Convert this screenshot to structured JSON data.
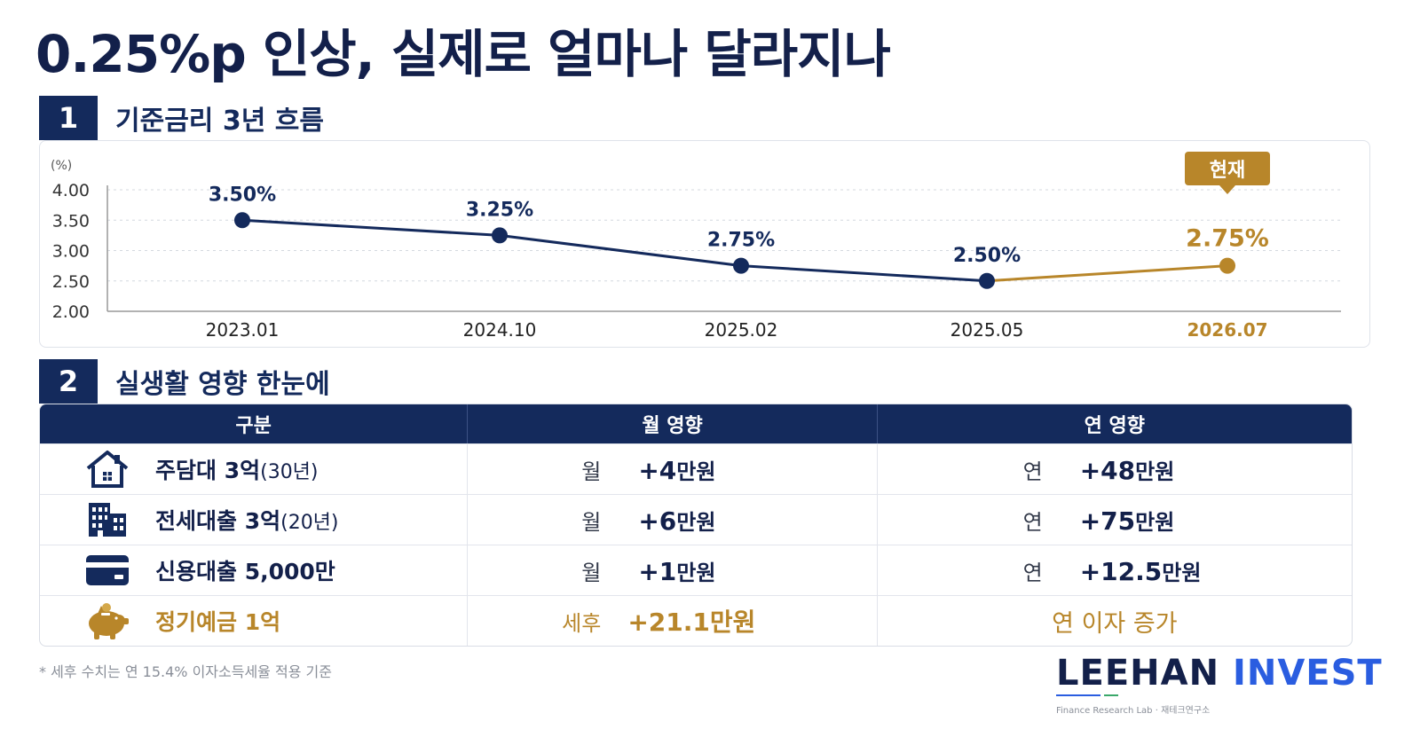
{
  "title": "0.25%p 인상, 실제로 얼마나 달라지나",
  "section1": {
    "number": "1",
    "title": "기준금리 3년 흐름"
  },
  "section2": {
    "number": "2",
    "title": "실생활 영향 한눈에"
  },
  "chart_data": {
    "type": "line",
    "ylabel": "(%)",
    "ylim": [
      2.0,
      4.0
    ],
    "yticks": [
      "4.00",
      "3.50",
      "3.00",
      "2.50",
      "2.00"
    ],
    "categories": [
      "2023.01",
      "2024.10",
      "2025.02",
      "2025.05",
      "2026.07"
    ],
    "values": [
      3.5,
      3.25,
      2.75,
      2.5,
      2.75
    ],
    "data_labels": [
      "3.50%",
      "3.25%",
      "2.75%",
      "2.50%",
      "2.75%"
    ],
    "current_badge": "현재",
    "highlight_index": 4,
    "grid": true,
    "colors": {
      "line": "#142a5c",
      "highlight": "#b8862a"
    }
  },
  "table": {
    "headers": [
      "구분",
      "월 영향",
      "연 영향"
    ],
    "rows": [
      {
        "icon": "house-icon",
        "label_main": "주담대 3억",
        "label_sub": "(30년)",
        "monthly_prefix": "월",
        "monthly_value": "+4",
        "monthly_unit": "만원",
        "yearly_prefix": "연",
        "yearly_value": "+48",
        "yearly_unit": "만원"
      },
      {
        "icon": "building-icon",
        "label_main": "전세대출 3억",
        "label_sub": "(20년)",
        "monthly_prefix": "월",
        "monthly_value": "+6",
        "monthly_unit": "만원",
        "yearly_prefix": "연",
        "yearly_value": "+75",
        "yearly_unit": "만원"
      },
      {
        "icon": "credit-card-icon",
        "label_main": "신용대출 5,000만",
        "label_sub": "",
        "monthly_prefix": "월",
        "monthly_value": "+1",
        "monthly_unit": "만원",
        "yearly_prefix": "연",
        "yearly_value": "+12.5",
        "yearly_unit": "만원"
      },
      {
        "icon": "piggy-bank-icon",
        "label_main": "정기예금 1억",
        "label_sub": "",
        "monthly_prefix": "세후",
        "monthly_value": "+21.1",
        "monthly_unit": "만원",
        "yearly_text": "연 이자 증가"
      }
    ]
  },
  "footnote": "* 세후 수치는 연 15.4% 이자소득세율 적용 기준",
  "brand": {
    "name1": "LEEHAN",
    "name2": "INVEST",
    "sub": "Finance Research Lab · 재테크연구소"
  }
}
